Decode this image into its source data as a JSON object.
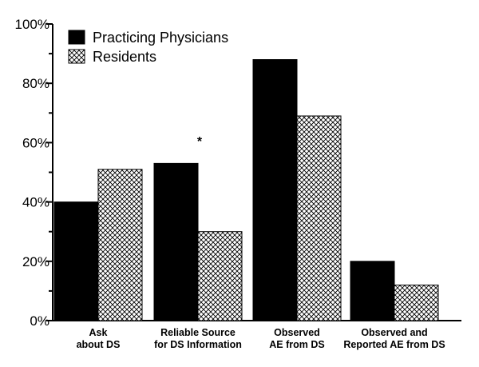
{
  "chart_data": {
    "type": "bar",
    "title": "",
    "xlabel": "",
    "ylabel": "",
    "ylim": [
      0,
      100
    ],
    "yticks": [
      "0%",
      "20%",
      "40%",
      "60%",
      "80%",
      "100%"
    ],
    "categories": [
      [
        "Ask",
        "about DS"
      ],
      [
        "Reliable Source",
        "for DS Information"
      ],
      [
        "Observed",
        "AE from DS"
      ],
      [
        "Observed and",
        "Reported AE from DS"
      ]
    ],
    "series": [
      {
        "name": "Practicing Physicians",
        "values": [
          40,
          53,
          88,
          20
        ],
        "color": "#000000",
        "pattern": "solid"
      },
      {
        "name": "Residents",
        "values": [
          51,
          30,
          69,
          12
        ],
        "color": "#ffffff",
        "pattern": "crosshatch"
      }
    ],
    "annotations": [
      {
        "text": "*",
        "category_index": 1
      }
    ],
    "legend": "top-left",
    "grid": false
  }
}
